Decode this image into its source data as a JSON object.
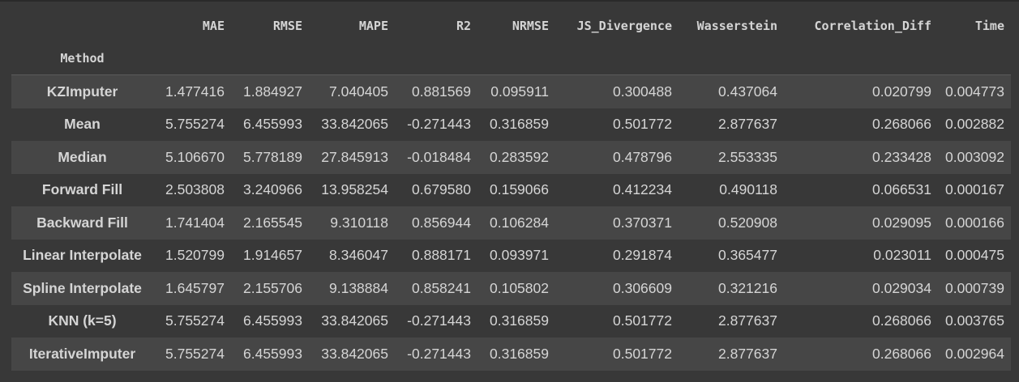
{
  "table": {
    "index_name": "Method",
    "columns": [
      "MAE",
      "RMSE",
      "MAPE",
      "R2",
      "NRMSE",
      "JS_Divergence",
      "Wasserstein",
      "Correlation_Diff",
      "Time"
    ],
    "rows": [
      {
        "method": "KZImputer",
        "values": [
          "1.477416",
          "1.884927",
          "7.040405",
          "0.881569",
          "0.095911",
          "0.300488",
          "0.437064",
          "0.020799",
          "0.004773"
        ]
      },
      {
        "method": "Mean",
        "values": [
          "5.755274",
          "6.455993",
          "33.842065",
          "-0.271443",
          "0.316859",
          "0.501772",
          "2.877637",
          "0.268066",
          "0.002882"
        ]
      },
      {
        "method": "Median",
        "values": [
          "5.106670",
          "5.778189",
          "27.845913",
          "-0.018484",
          "0.283592",
          "0.478796",
          "2.553335",
          "0.233428",
          "0.003092"
        ]
      },
      {
        "method": "Forward Fill",
        "values": [
          "2.503808",
          "3.240966",
          "13.958254",
          "0.679580",
          "0.159066",
          "0.412234",
          "0.490118",
          "0.066531",
          "0.000167"
        ]
      },
      {
        "method": "Backward Fill",
        "values": [
          "1.741404",
          "2.165545",
          "9.310118",
          "0.856944",
          "0.106284",
          "0.370371",
          "0.520908",
          "0.029095",
          "0.000166"
        ]
      },
      {
        "method": "Linear Interpolate",
        "values": [
          "1.520799",
          "1.914657",
          "8.346047",
          "0.888171",
          "0.093971",
          "0.291874",
          "0.365477",
          "0.023011",
          "0.000475"
        ]
      },
      {
        "method": "Spline Interpolate",
        "values": [
          "1.645797",
          "2.155706",
          "9.138884",
          "0.858241",
          "0.105802",
          "0.306609",
          "0.321216",
          "0.029034",
          "0.000739"
        ]
      },
      {
        "method": "KNN (k=5)",
        "values": [
          "5.755274",
          "6.455993",
          "33.842065",
          "-0.271443",
          "0.316859",
          "0.501772",
          "2.877637",
          "0.268066",
          "0.003765"
        ]
      },
      {
        "method": "IterativeImputer",
        "values": [
          "5.755274",
          "6.455993",
          "33.842065",
          "-0.271443",
          "0.316859",
          "0.501772",
          "2.877637",
          "0.268066",
          "0.002964"
        ]
      }
    ]
  }
}
